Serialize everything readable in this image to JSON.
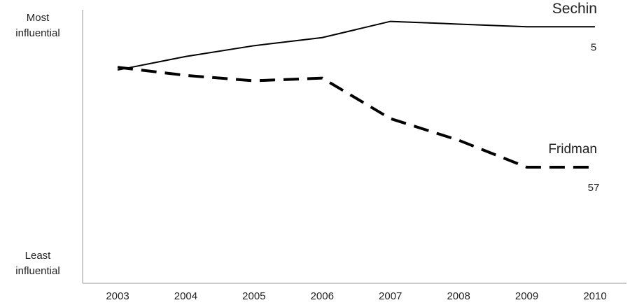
{
  "chart_data": {
    "type": "line",
    "categories": [
      "2003",
      "2004",
      "2005",
      "2006",
      "2007",
      "2008",
      "2009",
      "2010"
    ],
    "series": [
      {
        "name": "Sechin",
        "color": "#000000",
        "line_style": "solid",
        "values": [
          21,
          16,
          12,
          9,
          3,
          4,
          5,
          5
        ]
      },
      {
        "name": "Fridman",
        "color": "#000000",
        "line_style": "dashed",
        "values": [
          20,
          23,
          25,
          24,
          39,
          47,
          57,
          57
        ]
      }
    ],
    "ylim": [
      100,
      0
    ],
    "yticks": [
      {
        "value": 0,
        "label": "Most influential"
      },
      {
        "value": 100,
        "label": "Least influential"
      }
    ],
    "grid": false
  }
}
